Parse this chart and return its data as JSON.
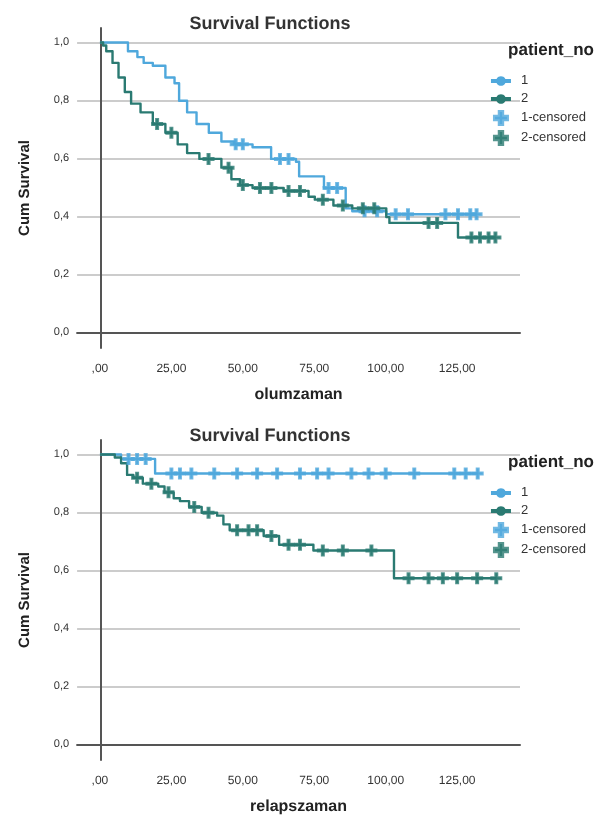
{
  "chart_data": [
    {
      "type": "step",
      "title": "Survival Functions",
      "xlabel": "olumzaman",
      "ylabel": "Cum Survival",
      "legend_title": "patient_no",
      "legend": "right",
      "grid": "y",
      "xlim": [
        -8,
        147
      ],
      "xticks": [
        {
          "value": 0,
          "label": ",00"
        },
        {
          "value": 25,
          "label": "25,00"
        },
        {
          "value": 50,
          "label": "50,00"
        },
        {
          "value": 75,
          "label": "75,00"
        },
        {
          "value": 100,
          "label": "100,00"
        },
        {
          "value": 125,
          "label": "125,00"
        }
      ],
      "ylim": [
        -0.05,
        1.05
      ],
      "yticks": [
        {
          "value": 0,
          "label": "0,0"
        },
        {
          "value": 0.2,
          "label": "0,2"
        },
        {
          "value": 0.4,
          "label": "0,4"
        },
        {
          "value": 0.6,
          "label": "0,6"
        },
        {
          "value": 0.8,
          "label": "0,8"
        },
        {
          "value": 1,
          "label": "1,0"
        }
      ],
      "series": [
        {
          "name": "1",
          "marker": "none",
          "color": "#4fa8dc",
          "x": [
            0,
            9.8,
            13.1,
            15.3,
            18.5,
            22.9,
            26.1,
            27.7,
            30.5,
            33.8,
            38.1,
            42.5,
            46.9,
            53.4,
            59.9,
            68.6,
            69.7,
            78.4,
            86,
            88.3,
            100.2,
            131.8
          ],
          "values": [
            1,
            0.97,
            0.95,
            0.93,
            0.92,
            0.88,
            0.86,
            0.8,
            0.76,
            0.72,
            0.69,
            0.66,
            0.65,
            0.64,
            0.6,
            0.59,
            0.54,
            0.5,
            0.43,
            0.42,
            0.41,
            0.41
          ]
        },
        {
          "name": "2",
          "marker": "none",
          "color": "#2a7a72",
          "x": [
            0,
            1.1,
            2.2,
            4.4,
            6.5,
            8.7,
            10.9,
            14.2,
            18.5,
            22.9,
            27.2,
            30.5,
            34.8,
            42.5,
            46,
            49,
            53.4,
            64.3,
            73,
            75.2,
            81.7,
            88.3,
            100.2,
            101.3,
            125.3,
            138.4
          ],
          "values": [
            1,
            0.99,
            0.97,
            0.93,
            0.88,
            0.83,
            0.79,
            0.76,
            0.72,
            0.69,
            0.65,
            0.62,
            0.6,
            0.57,
            0.53,
            0.51,
            0.5,
            0.49,
            0.47,
            0.46,
            0.44,
            0.43,
            0.4,
            0.38,
            0.33,
            0.33
          ]
        },
        {
          "name": "1-censored",
          "type": "scatter",
          "marker": "cross",
          "color": "#4fa8dc",
          "x": [
            47.5,
            50,
            63,
            66,
            80,
            83,
            92.6,
            97,
            103.5,
            107.8,
            120.9,
            125.3,
            129.6,
            131.8
          ],
          "values": [
            0.65,
            0.65,
            0.6,
            0.6,
            0.5,
            0.5,
            0.42,
            0.42,
            0.41,
            0.41,
            0.41,
            0.41,
            0.41,
            0.41
          ]
        },
        {
          "name": "2-censored",
          "type": "scatter",
          "marker": "cross",
          "color": "#2a7a72",
          "x": [
            20,
            25,
            38,
            45,
            50,
            56,
            60,
            66,
            70,
            78,
            85,
            92,
            96,
            115,
            118,
            130,
            133,
            136,
            138.4
          ],
          "values": [
            0.72,
            0.69,
            0.6,
            0.57,
            0.51,
            0.5,
            0.5,
            0.49,
            0.49,
            0.46,
            0.44,
            0.43,
            0.43,
            0.38,
            0.38,
            0.33,
            0.33,
            0.33,
            0.33
          ]
        }
      ]
    },
    {
      "type": "step",
      "title": "Survival Functions",
      "xlabel": "relapszaman",
      "ylabel": "Cum Survival",
      "legend_title": "patient_no",
      "legend": "right",
      "grid": "y",
      "xlim": [
        -8,
        147
      ],
      "xticks": [
        {
          "value": 0,
          "label": ",00"
        },
        {
          "value": 25,
          "label": "25,00"
        },
        {
          "value": 50,
          "label": "50,00"
        },
        {
          "value": 75,
          "label": "75,00"
        },
        {
          "value": 100,
          "label": "100,00"
        },
        {
          "value": 125,
          "label": "125,00"
        }
      ],
      "ylim": [
        -0.05,
        1.05
      ],
      "yticks": [
        {
          "value": 0,
          "label": "0,0"
        },
        {
          "value": 0.2,
          "label": "0,2"
        },
        {
          "value": 0.4,
          "label": "0,4"
        },
        {
          "value": 0.6,
          "label": "0,6"
        },
        {
          "value": 0.8,
          "label": "0,8"
        },
        {
          "value": 1,
          "label": "1,0"
        }
      ],
      "series": [
        {
          "name": "1",
          "marker": "none",
          "color": "#4fa8dc",
          "x": [
            0,
            7.4,
            19.3,
            132.2
          ],
          "values": [
            1,
            0.985,
            0.935,
            0.935
          ]
        },
        {
          "name": "2",
          "marker": "none",
          "color": "#2a7a72",
          "x": [
            0,
            5.2,
            7.4,
            9.5,
            11.7,
            15,
            20.4,
            22.6,
            25.8,
            28,
            31.2,
            35.6,
            41,
            43.2,
            45.4,
            57.3,
            62.7,
            74.7,
            102.9,
            138.7
          ],
          "values": [
            1,
            0.99,
            0.97,
            0.93,
            0.92,
            0.9,
            0.89,
            0.87,
            0.85,
            0.84,
            0.82,
            0.8,
            0.79,
            0.76,
            0.74,
            0.72,
            0.69,
            0.67,
            0.575,
            0.575
          ]
        },
        {
          "name": "1-censored",
          "type": "scatter",
          "marker": "cross",
          "color": "#4fa8dc",
          "x": [
            10,
            13,
            16,
            25,
            28,
            32,
            40,
            48,
            55,
            62,
            70,
            76,
            80,
            88,
            94,
            100,
            110,
            124,
            128,
            132.2
          ],
          "values": [
            0.985,
            0.985,
            0.985,
            0.935,
            0.935,
            0.935,
            0.935,
            0.935,
            0.935,
            0.935,
            0.935,
            0.935,
            0.935,
            0.935,
            0.935,
            0.935,
            0.935,
            0.935,
            0.935,
            0.935
          ]
        },
        {
          "name": "2-censored",
          "type": "scatter",
          "marker": "cross",
          "color": "#2a7a72",
          "x": [
            13,
            18,
            24,
            33,
            38,
            48,
            52,
            55,
            60,
            66,
            70,
            78,
            85,
            95,
            108,
            115,
            120,
            125,
            132,
            138.7
          ],
          "values": [
            0.92,
            0.9,
            0.87,
            0.82,
            0.8,
            0.74,
            0.74,
            0.74,
            0.72,
            0.69,
            0.69,
            0.67,
            0.67,
            0.67,
            0.575,
            0.575,
            0.575,
            0.575,
            0.575,
            0.575
          ]
        }
      ]
    }
  ]
}
